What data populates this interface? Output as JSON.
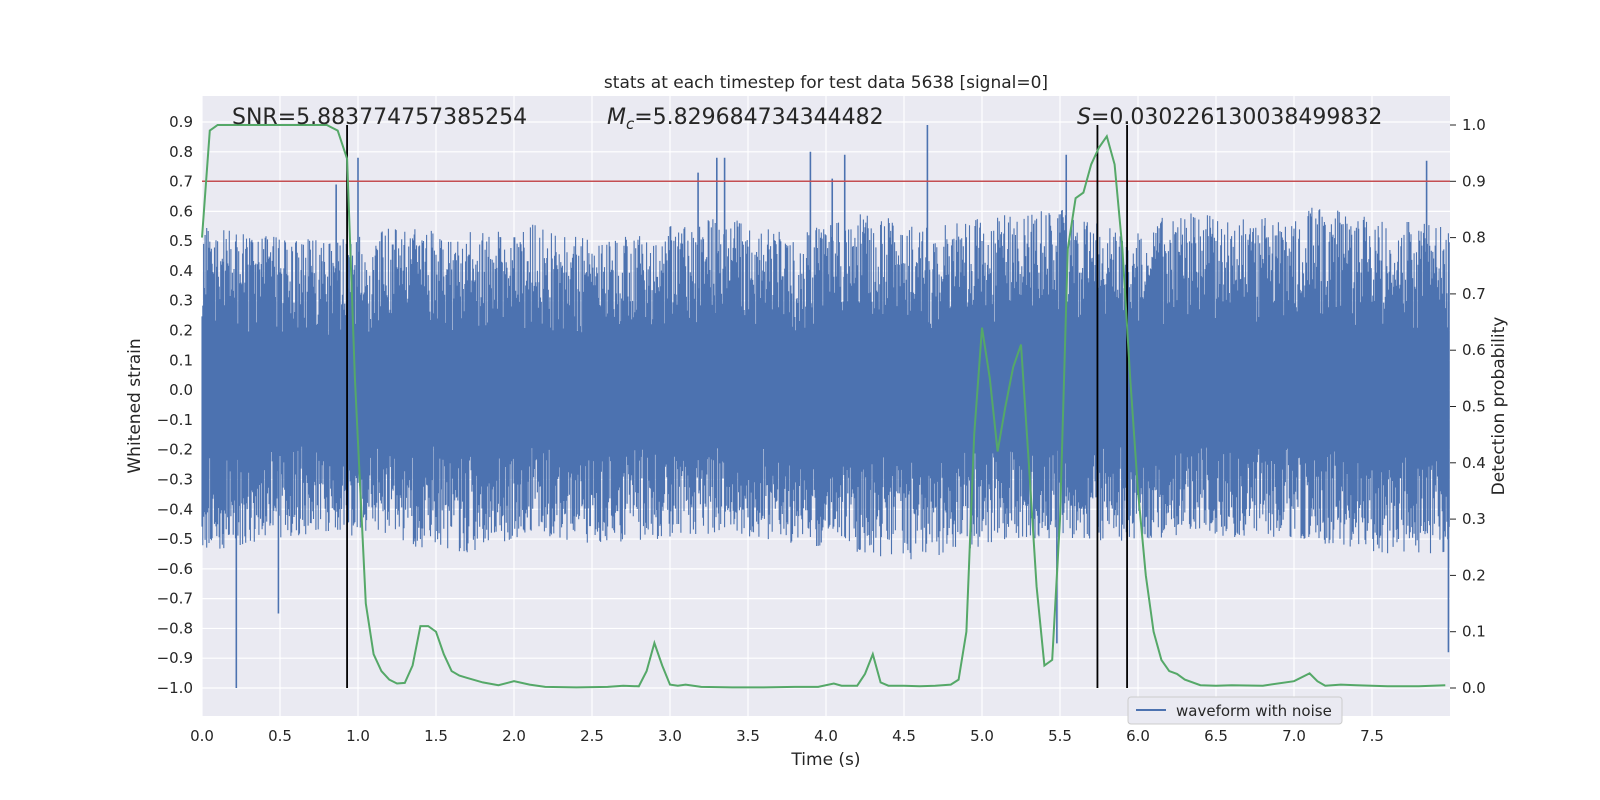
{
  "chart_data": {
    "type": "line",
    "title": "stats at each timestep for test data 5638 [signal=0]",
    "xlabel": "Time (s)",
    "ylabel_left": "Whitened strain",
    "ylabel_right": "Detection probability",
    "xlim": [
      0.0,
      8.0
    ],
    "ylim_left": [
      -1.0,
      0.9
    ],
    "ylim_right": [
      0.0,
      1.0
    ],
    "x_ticks": [
      "0.0",
      "0.5",
      "1.0",
      "1.5",
      "2.0",
      "2.5",
      "3.0",
      "3.5",
      "4.0",
      "4.5",
      "5.0",
      "5.5",
      "6.0",
      "6.5",
      "7.0",
      "7.5"
    ],
    "y_ticks_left": [
      "0.9",
      "0.8",
      "0.7",
      "0.6",
      "0.5",
      "0.4",
      "0.3",
      "0.2",
      "0.1",
      "0.0",
      "-0.1",
      "-0.2",
      "-0.3",
      "-0.4",
      "-0.5",
      "-0.6",
      "-0.7",
      "-0.8",
      "-0.9",
      "-1.0"
    ],
    "y_ticks_right": [
      "1.0",
      "0.9",
      "0.8",
      "0.7",
      "0.6",
      "0.5",
      "0.4",
      "0.3",
      "0.2",
      "0.1",
      "0.0"
    ],
    "grid": true,
    "legend": {
      "placement": "lower-right",
      "entries": [
        "waveform with noise"
      ]
    },
    "annotations": {
      "snr": "SNR=5.883774757385254",
      "mc": "M_c=5.829684734344482",
      "mc_symbol": "M",
      "mc_sub": "c",
      "mc_rest": "=5.829684734344482",
      "s": "S=0.030226130038499832",
      "s_symbol": "S",
      "s_rest": "=0.030226130038499832"
    },
    "threshold": {
      "axis": "right",
      "value": 0.9,
      "color": "#c44e52"
    },
    "vertical_lines": [
      0.93,
      5.74,
      5.93
    ],
    "series": [
      {
        "name": "waveform with noise",
        "axis": "left",
        "color": "#4c72b0",
        "style": "dense noise, typical envelope approx. -0.45 to 0.55, peaks to 0.9 and -1.0",
        "envelope_upper": [
          0.55,
          0.52,
          0.5,
          0.55,
          0.53,
          0.56,
          0.5,
          0.55,
          0.58,
          0.52,
          0.6,
          0.55,
          0.58,
          0.62,
          0.55,
          0.6,
          0.57,
          0.62,
          0.58,
          0.55
        ],
        "envelope_lower": [
          -0.55,
          -0.5,
          -0.48,
          -0.52,
          -0.55,
          -0.48,
          -0.52,
          -0.5,
          -0.48,
          -0.52,
          -0.55,
          -0.58,
          -0.52,
          -0.5,
          -0.52,
          -0.48,
          -0.5,
          -0.52,
          -0.55,
          -0.55
        ],
        "notable_peaks": [
          {
            "x": 0.22,
            "y": -1.0
          },
          {
            "x": 0.49,
            "y": -0.75
          },
          {
            "x": 0.86,
            "y": 0.69
          },
          {
            "x": 1.0,
            "y": 0.78
          },
          {
            "x": 3.18,
            "y": 0.73
          },
          {
            "x": 3.3,
            "y": 0.78
          },
          {
            "x": 3.35,
            "y": 0.78
          },
          {
            "x": 3.9,
            "y": 0.8
          },
          {
            "x": 4.04,
            "y": 0.71
          },
          {
            "x": 4.12,
            "y": 0.79
          },
          {
            "x": 4.65,
            "y": 0.89
          },
          {
            "x": 5.48,
            "y": -0.85
          },
          {
            "x": 5.54,
            "y": 0.79
          },
          {
            "x": 7.85,
            "y": 0.77
          },
          {
            "x": 7.99,
            "y": -0.88
          }
        ]
      },
      {
        "name": "detection probability",
        "axis": "right",
        "color": "#55a868",
        "x": [
          0.0,
          0.05,
          0.1,
          0.15,
          0.2,
          0.3,
          0.4,
          0.5,
          0.6,
          0.7,
          0.8,
          0.87,
          0.93,
          0.98,
          1.05,
          1.1,
          1.15,
          1.2,
          1.25,
          1.3,
          1.35,
          1.4,
          1.45,
          1.5,
          1.55,
          1.6,
          1.65,
          1.7,
          1.8,
          1.9,
          2.0,
          2.1,
          2.2,
          2.4,
          2.6,
          2.7,
          2.8,
          2.85,
          2.9,
          2.95,
          3.0,
          3.05,
          3.1,
          3.2,
          3.4,
          3.6,
          3.8,
          3.95,
          4.05,
          4.1,
          4.2,
          4.25,
          4.3,
          4.35,
          4.4,
          4.5,
          4.6,
          4.7,
          4.8,
          4.85,
          4.9,
          4.95,
          5.0,
          5.05,
          5.1,
          5.15,
          5.2,
          5.25,
          5.3,
          5.35,
          5.4,
          5.45,
          5.5,
          5.55,
          5.6,
          5.65,
          5.7,
          5.75,
          5.8,
          5.85,
          5.9,
          5.95,
          6.0,
          6.05,
          6.1,
          6.15,
          6.2,
          6.25,
          6.3,
          6.4,
          6.5,
          6.6,
          6.8,
          7.0,
          7.1,
          7.15,
          7.2,
          7.3,
          7.4,
          7.5,
          7.6,
          7.8,
          7.97
        ],
        "values": [
          0.8,
          0.99,
          1.0,
          1.0,
          1.0,
          1.0,
          1.0,
          1.0,
          1.0,
          1.0,
          1.0,
          0.99,
          0.94,
          0.55,
          0.15,
          0.06,
          0.03,
          0.015,
          0.008,
          0.009,
          0.04,
          0.11,
          0.11,
          0.1,
          0.06,
          0.03,
          0.022,
          0.018,
          0.01,
          0.005,
          0.012,
          0.006,
          0.002,
          0.001,
          0.002,
          0.004,
          0.003,
          0.03,
          0.08,
          0.04,
          0.006,
          0.004,
          0.006,
          0.002,
          0.001,
          0.001,
          0.002,
          0.002,
          0.008,
          0.004,
          0.004,
          0.025,
          0.06,
          0.01,
          0.004,
          0.004,
          0.003,
          0.004,
          0.006,
          0.015,
          0.1,
          0.45,
          0.64,
          0.55,
          0.42,
          0.5,
          0.57,
          0.61,
          0.4,
          0.18,
          0.04,
          0.05,
          0.3,
          0.78,
          0.87,
          0.88,
          0.93,
          0.96,
          0.98,
          0.93,
          0.78,
          0.55,
          0.35,
          0.2,
          0.1,
          0.05,
          0.03,
          0.025,
          0.015,
          0.005,
          0.004,
          0.005,
          0.004,
          0.012,
          0.026,
          0.012,
          0.004,
          0.006,
          0.005,
          0.004,
          0.003,
          0.003,
          0.005
        ]
      }
    ]
  }
}
